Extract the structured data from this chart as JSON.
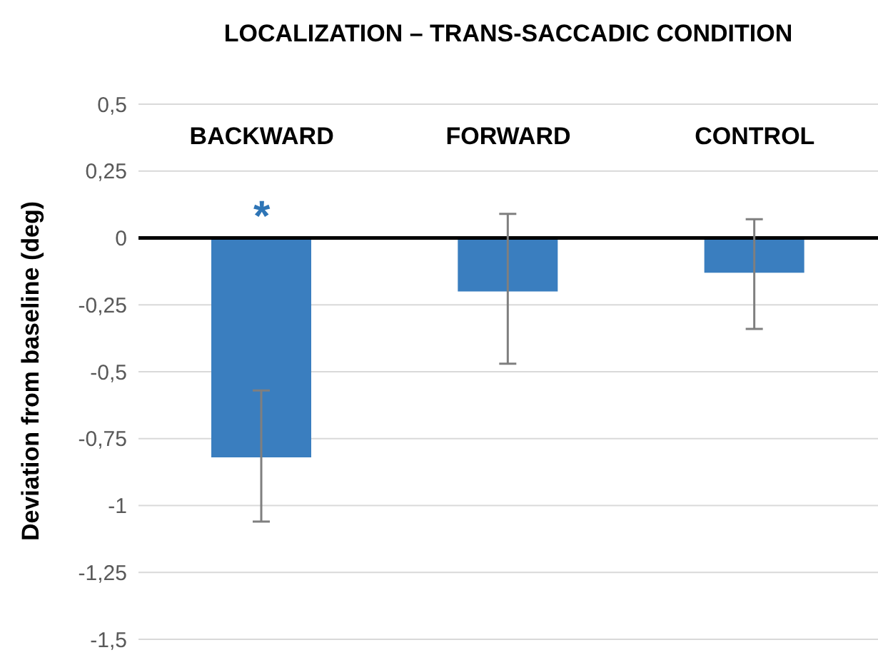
{
  "chart_data": {
    "type": "bar",
    "title": "LOCALIZATION – TRANS-SACCADIC CONDITION",
    "ylabel": "Deviation from baseline (deg)",
    "categories": [
      "BACKWARD",
      "FORWARD",
      "CONTROL"
    ],
    "values": [
      -0.82,
      -0.2,
      -0.13
    ],
    "color": "#3a7ebf",
    "errors": [
      [
        -1.06,
        -0.57
      ],
      [
        -0.47,
        0.09
      ],
      [
        -0.34,
        0.07
      ]
    ],
    "ylim": [
      -1.5,
      0.5
    ],
    "yticks": [
      {
        "value": -1.5,
        "label": "-1,5"
      },
      {
        "value": -1.25,
        "label": "-1,25"
      },
      {
        "value": -1,
        "label": "-1"
      },
      {
        "value": -0.75,
        "label": "-0,75"
      },
      {
        "value": -0.5,
        "label": "-0,5"
      },
      {
        "value": -0.25,
        "label": "-0,25"
      },
      0,
      {
        "value": 0.25,
        "label": "0,25"
      },
      {
        "value": 0.5,
        "label": "0,5"
      }
    ],
    "grid": "y",
    "ref_lines": [
      {
        "axis": "y",
        "value": 0,
        "color": "#000000"
      }
    ],
    "annotations": [
      "*"
    ]
  }
}
